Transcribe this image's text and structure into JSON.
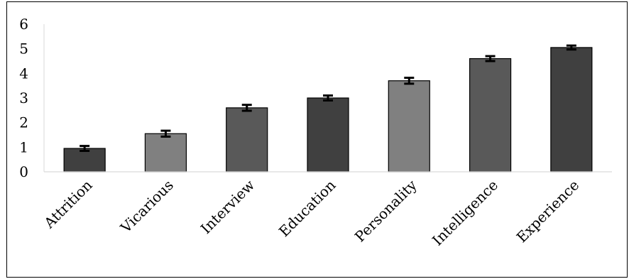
{
  "chart_data": {
    "type": "bar",
    "categories": [
      "Attrition",
      "Vicarious",
      "Interview",
      "Education",
      "Personality",
      "Intelligence",
      "Experience"
    ],
    "values": [
      0.95,
      1.55,
      2.6,
      3.0,
      3.7,
      4.6,
      5.05
    ],
    "errors": [
      0.1,
      0.12,
      0.12,
      0.1,
      0.12,
      0.1,
      0.08
    ],
    "bar_colors": [
      "#404040",
      "#808080",
      "#595959",
      "#404040",
      "#808080",
      "#595959",
      "#404040"
    ],
    "error_bar_color": "#000000",
    "ylim": [
      0,
      6
    ],
    "yticks": [
      "0",
      "1",
      "2",
      "3",
      "4",
      "5",
      "6"
    ],
    "title": "",
    "xlabel": "",
    "ylabel": "",
    "grid": false,
    "legend": "none"
  }
}
